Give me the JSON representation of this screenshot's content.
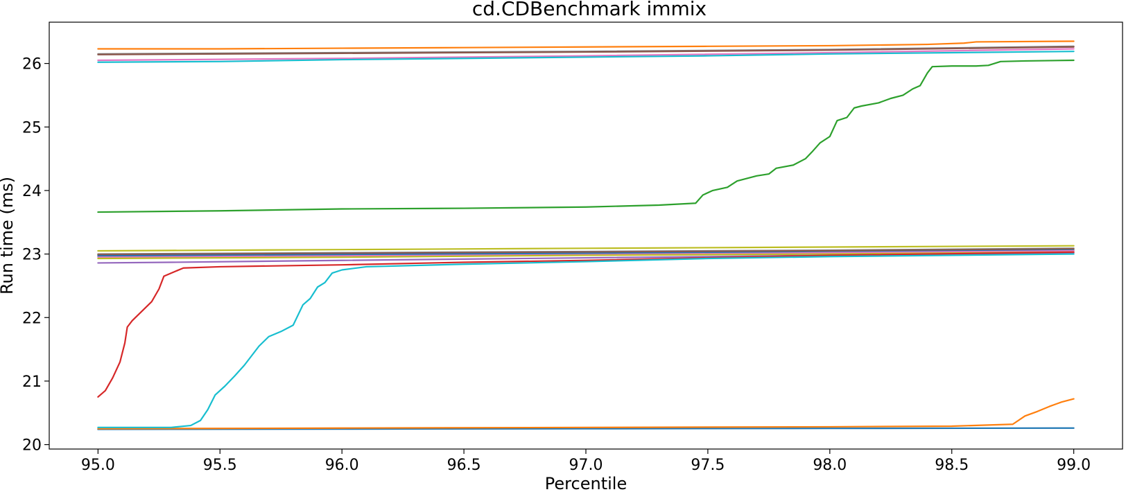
{
  "chart_data": {
    "type": "line",
    "title": "cd.CDBenchmark immix",
    "xlabel": "Percentile",
    "ylabel": "Run time (ms)",
    "xlim": [
      94.8,
      99.2
    ],
    "ylim": [
      19.93,
      26.65
    ],
    "xticks": [
      95.0,
      95.5,
      96.0,
      96.5,
      97.0,
      97.5,
      98.0,
      98.5,
      99.0
    ],
    "xtick_labels": [
      "95.0",
      "95.5",
      "96.0",
      "96.5",
      "97.0",
      "97.5",
      "98.0",
      "98.5",
      "99.0"
    ],
    "yticks": [
      20,
      21,
      22,
      23,
      24,
      25,
      26
    ],
    "ytick_labels": [
      "20",
      "21",
      "22",
      "23",
      "24",
      "25",
      "26"
    ],
    "grid": false,
    "legend": false,
    "series": [
      {
        "color": "#1f77b4",
        "x": [
          95.0,
          96.0,
          97.0,
          98.0,
          99.0
        ],
        "y": [
          20.24,
          20.245,
          20.25,
          20.255,
          20.26
        ]
      },
      {
        "color": "#ff7f0e",
        "x": [
          95.0,
          96.0,
          97.0,
          98.0,
          98.5,
          98.75,
          98.8,
          98.85,
          98.9,
          98.95,
          99.0
        ],
        "y": [
          20.25,
          20.26,
          20.27,
          20.28,
          20.29,
          20.32,
          20.45,
          20.52,
          20.6,
          20.67,
          20.72
        ]
      },
      {
        "color": "#ff7f0e",
        "x": [
          95.0,
          95.5,
          96.0,
          96.5,
          97.0,
          97.5,
          98.0,
          98.4,
          98.55,
          98.6,
          99.0
        ],
        "y": [
          26.23,
          26.23,
          26.24,
          26.25,
          26.26,
          26.27,
          26.28,
          26.3,
          26.32,
          26.34,
          26.35
        ]
      },
      {
        "color": "#7f7f7f",
        "x": [
          95.0,
          96.0,
          97.0,
          98.0,
          99.0
        ],
        "y": [
          26.15,
          26.17,
          26.19,
          26.22,
          26.27
        ]
      },
      {
        "color": "#8c564b",
        "x": [
          95.0,
          96.0,
          97.0,
          98.0,
          99.0
        ],
        "y": [
          26.14,
          26.16,
          26.18,
          26.21,
          26.26
        ]
      },
      {
        "color": "#e377c2",
        "x": [
          95.0,
          96.0,
          97.0,
          98.0,
          99.0
        ],
        "y": [
          26.05,
          26.08,
          26.12,
          26.17,
          26.23
        ]
      },
      {
        "color": "#17becf",
        "x": [
          95.0,
          95.5,
          96.0,
          96.5,
          97.0,
          97.5,
          98.0,
          98.5,
          99.0
        ],
        "y": [
          26.02,
          26.03,
          26.06,
          26.08,
          26.1,
          26.12,
          26.15,
          26.17,
          26.19
        ]
      },
      {
        "color": "#2ca02c",
        "x": [
          95.0,
          95.5,
          96.0,
          96.5,
          97.0,
          97.3,
          97.45,
          97.48,
          97.52,
          97.58,
          97.62,
          97.7,
          97.75,
          97.78,
          97.85,
          97.9,
          97.93,
          97.96,
          98.0,
          98.03,
          98.07,
          98.1,
          98.13,
          98.2,
          98.25,
          98.3,
          98.34,
          98.37,
          98.4,
          98.42,
          98.5,
          98.6,
          98.65,
          98.7,
          98.8,
          99.0
        ],
        "y": [
          23.66,
          23.68,
          23.71,
          23.72,
          23.74,
          23.77,
          23.8,
          23.93,
          24.0,
          24.05,
          24.15,
          24.23,
          24.26,
          24.35,
          24.4,
          24.5,
          24.62,
          24.75,
          24.85,
          25.1,
          25.15,
          25.3,
          25.33,
          25.38,
          25.45,
          25.5,
          25.6,
          25.65,
          25.85,
          25.95,
          25.96,
          25.96,
          25.97,
          26.03,
          26.04,
          26.05
        ]
      },
      {
        "color": "#bcbd22",
        "x": [
          95.0,
          96.0,
          97.0,
          98.0,
          99.0
        ],
        "y": [
          23.05,
          23.07,
          23.09,
          23.11,
          23.13
        ]
      },
      {
        "color": "#7f7f7f",
        "x": [
          95.0,
          96.0,
          97.0,
          98.0,
          99.0
        ],
        "y": [
          23.0,
          23.02,
          23.04,
          23.06,
          23.09
        ]
      },
      {
        "color": "#8c564b",
        "x": [
          95.0,
          96.0,
          97.0,
          98.0,
          99.0
        ],
        "y": [
          22.99,
          23.01,
          23.03,
          23.05,
          23.08
        ]
      },
      {
        "color": "#1f77b4",
        "x": [
          95.0,
          96.0,
          97.0,
          98.0,
          99.0
        ],
        "y": [
          22.97,
          22.99,
          23.01,
          23.03,
          23.06
        ]
      },
      {
        "color": "#e377c2",
        "x": [
          95.0,
          96.0,
          97.0,
          98.0,
          99.0
        ],
        "y": [
          22.95,
          22.97,
          22.99,
          23.02,
          23.05
        ]
      },
      {
        "color": "#bcbd22",
        "x": [
          95.0,
          96.0,
          97.0,
          98.0,
          99.0
        ],
        "y": [
          22.93,
          22.95,
          22.98,
          23.0,
          23.03
        ]
      },
      {
        "color": "#9467bd",
        "x": [
          95.0,
          95.3,
          96.0,
          97.0,
          98.0,
          99.0
        ],
        "y": [
          22.86,
          22.87,
          22.9,
          22.94,
          22.98,
          23.02
        ]
      },
      {
        "color": "#d62728",
        "x": [
          95.0,
          95.03,
          95.06,
          95.09,
          95.11,
          95.12,
          95.14,
          95.18,
          95.22,
          95.25,
          95.27,
          95.3,
          95.35,
          95.5,
          96.0,
          96.5,
          97.0,
          97.5,
          98.0,
          99.0
        ],
        "y": [
          20.75,
          20.85,
          21.05,
          21.3,
          21.6,
          21.85,
          21.95,
          22.1,
          22.25,
          22.45,
          22.65,
          22.7,
          22.78,
          22.8,
          22.83,
          22.87,
          22.9,
          22.94,
          22.98,
          23.03
        ]
      },
      {
        "color": "#17becf",
        "x": [
          95.0,
          95.3,
          95.38,
          95.42,
          95.45,
          95.48,
          95.52,
          95.56,
          95.6,
          95.63,
          95.66,
          95.7,
          95.75,
          95.8,
          95.84,
          95.87,
          95.9,
          95.93,
          95.96,
          96.0,
          96.1,
          96.5,
          97.0,
          97.5,
          98.0,
          99.0
        ],
        "y": [
          20.27,
          20.27,
          20.3,
          20.38,
          20.55,
          20.78,
          20.92,
          21.08,
          21.25,
          21.4,
          21.55,
          21.7,
          21.78,
          21.88,
          22.2,
          22.3,
          22.48,
          22.55,
          22.7,
          22.75,
          22.8,
          22.84,
          22.88,
          22.93,
          22.96,
          23.0
        ]
      }
    ]
  }
}
